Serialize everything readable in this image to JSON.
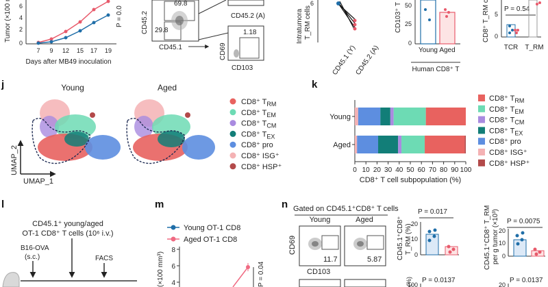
{
  "top": {
    "tumor_ylabel": "Tumor (×100 m",
    "tumor_xticks": [
      "7",
      "9",
      "12",
      "15",
      "17",
      "19"
    ],
    "tumor_yticks": [
      "0",
      "2",
      "4",
      "6"
    ],
    "tumor_xlabel": "Days after MB49 inoculation",
    "tumor_p": "P = 0.0",
    "facs_y": "CD45.2",
    "facs_x": "CD45.1",
    "facs_q1": "69.8",
    "facs_q2": "29.8",
    "facs_cd45a": "CD45.2 (A)",
    "facs_cd69": "CD69",
    "facs_cd103": "CD103",
    "facs_118": "1.18",
    "intra_ylabel1": "Intratumora",
    "intra_ylabel2": "T_RM cells",
    "intra_y6": "6",
    "intra_x1": "CD45.1 (Y)",
    "intra_x2": "CD45.2 (A)",
    "cd103_ylabel": "CD103⁺ T",
    "cd103_yticks": [
      "50",
      "25",
      "0"
    ],
    "cd103_x1": "Young",
    "cd103_x2": "Aged",
    "cd103_group": "Human CD8⁺ T",
    "trm_ylabel": "CD8⁺ T_RM c",
    "trm_p": "P = 0.54",
    "trm_yticks": [
      "0",
      "5"
    ],
    "trm_x1": "TCR",
    "trm_x2": "T_RM"
  },
  "panel_j": {
    "letter": "j",
    "title_young": "Young",
    "title_aged": "Aged",
    "axis_y": "UMAP_2",
    "axis_x": "UMAP_1",
    "legend": [
      {
        "label": "CD8⁺ T_RM",
        "color": "#e8625f"
      },
      {
        "label": "CD8⁺ T_EM",
        "color": "#6ddbb4"
      },
      {
        "label": "CD8⁺ T_CM",
        "color": "#a98be0"
      },
      {
        "label": "CD8⁺ T_EX",
        "color": "#127e78"
      },
      {
        "label": "CD8⁺ pro",
        "color": "#5d8ee0"
      },
      {
        "label": "CD8⁺ ISG⁺",
        "color": "#f4b2b4"
      },
      {
        "label": "CD8⁺ HSP⁺",
        "color": "#b34a4a"
      }
    ]
  },
  "panel_k": {
    "letter": "k",
    "chart_data": {
      "type": "bar",
      "orientation": "horizontal-stacked",
      "categories": [
        "Young",
        "Aged"
      ],
      "series": [
        {
          "name": "CD8⁺ ISG⁺",
          "color": "#f4b2b4",
          "values": [
            3,
            2
          ]
        },
        {
          "name": "CD8⁺ pro",
          "color": "#5d8ee0",
          "values": [
            20,
            19
          ]
        },
        {
          "name": "CD8⁺ T_EX",
          "color": "#127e78",
          "values": [
            9,
            18
          ]
        },
        {
          "name": "CD8⁺ T_CM",
          "color": "#a98be0",
          "values": [
            3,
            3
          ]
        },
        {
          "name": "CD8⁺ T_EM",
          "color": "#6ddbb4",
          "values": [
            29,
            21
          ]
        },
        {
          "name": "CD8⁺ T_RM",
          "color": "#e8625f",
          "values": [
            36,
            36
          ]
        },
        {
          "name": "CD8⁺ HSP⁺",
          "color": "#b34a4a",
          "values": [
            0,
            1
          ]
        }
      ],
      "xticks": [
        "0",
        "10",
        "20",
        "30",
        "40",
        "50",
        "60",
        "70",
        "80",
        "90",
        "100"
      ],
      "xlabel": "CD8⁺ T cell subpopulation (%)",
      "xlim": [
        0,
        100
      ]
    },
    "legend": [
      {
        "label": "CD8⁺ T_RM",
        "color": "#e8625f"
      },
      {
        "label": "CD8⁺ T_EM",
        "color": "#6ddbb4"
      },
      {
        "label": "CD8⁺ T_CM",
        "color": "#a98be0"
      },
      {
        "label": "CD8⁺ T_EX",
        "color": "#127e78"
      },
      {
        "label": "CD8⁺ pro",
        "color": "#5d8ee0"
      },
      {
        "label": "CD8⁺ ISG⁺",
        "color": "#f4b2b4"
      },
      {
        "label": "CD8⁺ HSP⁺",
        "color": "#b34a4a"
      }
    ]
  },
  "panel_l": {
    "letter": "l",
    "line1": "CD45.1⁺ young/aged",
    "line2": "OT-1 CD8⁺ T cells (10⁶ i.v.)",
    "b16": "B16-OVA",
    "sc": "(s.c.)",
    "facs": "FACS"
  },
  "panel_m": {
    "letter": "m",
    "legend1": "Young OT-1 CD8",
    "legend2": "Aged OT-1 CD8",
    "yticks": [
      "8",
      "6",
      "4"
    ],
    "ylabel": "(×100 mm³)",
    "p": "P = 0.04"
  },
  "panel_n": {
    "letter": "n",
    "gated": "Gated on CD45.1⁺CD8⁺ T cells",
    "young": "Young",
    "aged": "Aged",
    "cd69": "CD69",
    "cd103": "CD103",
    "val_young": "11.7",
    "val_aged": "5.87",
    "dot1_p": "P = 0.017",
    "dot1_ylabel1": "CD45.1⁺CD8⁺",
    "dot1_ylabel2": "T_RM (%)",
    "dot1_yticks": [
      "20",
      "10",
      "0"
    ],
    "dot2_p": "P = 0.0075",
    "dot2_ylabel1": "CD45.1⁺CD8⁺ T_RM",
    "dot2_ylabel2": "per g tumor (×10³)",
    "dot2_yticks": [
      "20",
      "10",
      "0"
    ],
    "bottom_p1": "P = 0.0137",
    "bottom_p2": "P = 0.0137",
    "bottom_100": "100",
    "bottom_20": "20",
    "bottom_pct": "(%)"
  }
}
